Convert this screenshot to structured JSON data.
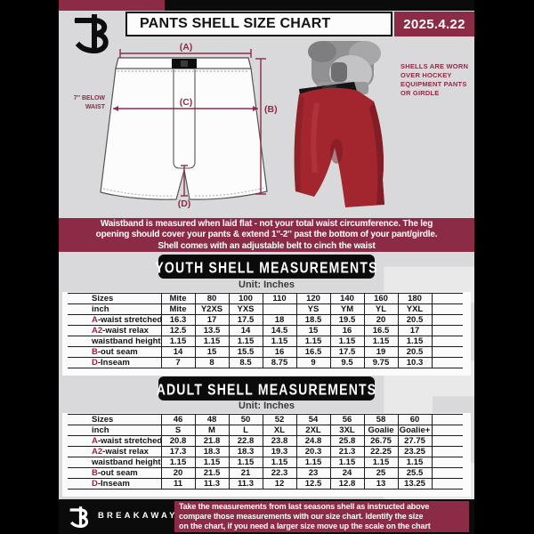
{
  "colors": {
    "maroon": "#8C2B46",
    "black": "#0B0B0B",
    "page_bg": "#D9D9DB",
    "accent_red": "#A02342",
    "shell_red": "#A3262E"
  },
  "header": {
    "title": "PANTS SHELL SIZE CHART",
    "date": "2025.4.22"
  },
  "diagram": {
    "label_a": "(A)",
    "label_b": "(B)",
    "label_c": "(C)",
    "label_d": "(D)",
    "below_waist_lines": [
      "7'' BELOW",
      "WAIST"
    ],
    "caption_lines": [
      "SHELLS ARE WORN",
      "OVER HOCKEY",
      "EQUIPMENT PANTS",
      "OR GIRDLE"
    ]
  },
  "notice": {
    "lines": [
      "Waistband is measured when laid flat - not your total waist circumference. The leg",
      "opening should cover your pants & extend 1''-2'' past the bottom of your pant/girdle.",
      "Shell comes with an adjustable belt to cinch the waist"
    ]
  },
  "youth": {
    "heading": "YOUTH SHELL MEASUREMENTS",
    "unit_label": "Unit: Inches",
    "rows": [
      {
        "prefix": "",
        "label": "Sizes",
        "values": [
          "Mite",
          "80",
          "100",
          "110",
          "120",
          "140",
          "160",
          "180"
        ]
      },
      {
        "prefix": "",
        "label": "inch",
        "values": [
          "Mite",
          "Y2XS",
          "YXS",
          "",
          "YS",
          "YM",
          "YL",
          "YXL"
        ]
      },
      {
        "prefix": "A",
        "label": "-waist stretched",
        "values": [
          "16.3",
          "17",
          "17.5",
          "18",
          "18.5",
          "19.5",
          "20",
          "20.5"
        ]
      },
      {
        "prefix": "A2",
        "label": "-waist relax",
        "values": [
          "12.5",
          "13.5",
          "14",
          "14.5",
          "15",
          "16",
          "16.5",
          "17"
        ]
      },
      {
        "prefix": "",
        "label": "waistband height",
        "values": [
          "1.15",
          "1.15",
          "1.15",
          "1.15",
          "1.15",
          "1.15",
          "1.15",
          "1.15"
        ]
      },
      {
        "prefix": "B",
        "label": "-out seam",
        "values": [
          "14",
          "15",
          "15.5",
          "16",
          "16.5",
          "17.5",
          "19",
          "20.5"
        ]
      },
      {
        "prefix": "D",
        "label": "-Inseam",
        "values": [
          "7",
          "8",
          "8.5",
          "8.75",
          "9",
          "9.5",
          "9.75",
          "10.3"
        ]
      }
    ]
  },
  "adult": {
    "heading": "ADULT SHELL MEASUREMENTS",
    "unit_label": "Unit: Inches",
    "rows": [
      {
        "prefix": "",
        "label": "Sizes",
        "values": [
          "46",
          "48",
          "50",
          "52",
          "54",
          "56",
          "58",
          "60"
        ]
      },
      {
        "prefix": "",
        "label": "inch",
        "values": [
          "S",
          "M",
          "L",
          "XL",
          "2XL",
          "3XL",
          "Goalie",
          "Goalie+"
        ]
      },
      {
        "prefix": "A",
        "label": "-waist stretched",
        "values": [
          "20.8",
          "21.8",
          "22.8",
          "23.8",
          "24.8",
          "25.8",
          "26.75",
          "27.75"
        ]
      },
      {
        "prefix": "A2",
        "label": "-waist relax",
        "values": [
          "17.3",
          "18.3",
          "18.3",
          "19.3",
          "20.3",
          "21.3",
          "22.25",
          "23.25"
        ]
      },
      {
        "prefix": "",
        "label": "waistband height",
        "values": [
          "1.15",
          "1.15",
          "1.15",
          "1.15",
          "1.15",
          "1.15",
          "1.15",
          "1.15"
        ]
      },
      {
        "prefix": "B",
        "label": "-out seam",
        "values": [
          "20",
          "21.5",
          "21",
          "22.3",
          "23",
          "24",
          "25",
          "25.5"
        ]
      },
      {
        "prefix": "D",
        "label": "-Inseam",
        "values": [
          "11",
          "11.3",
          "11.3",
          "12",
          "12.5",
          "12.8",
          "13",
          "13.25"
        ]
      }
    ]
  },
  "footer": {
    "brand": "BREAKAWAY",
    "note_lines": [
      "Take the measurements from last seasons shell as instructed above",
      "compare those measurements with our size chart. Identify the size",
      "on the chart, if you need a larger size move up the scale on the chart"
    ]
  },
  "watermark_letter": "B"
}
